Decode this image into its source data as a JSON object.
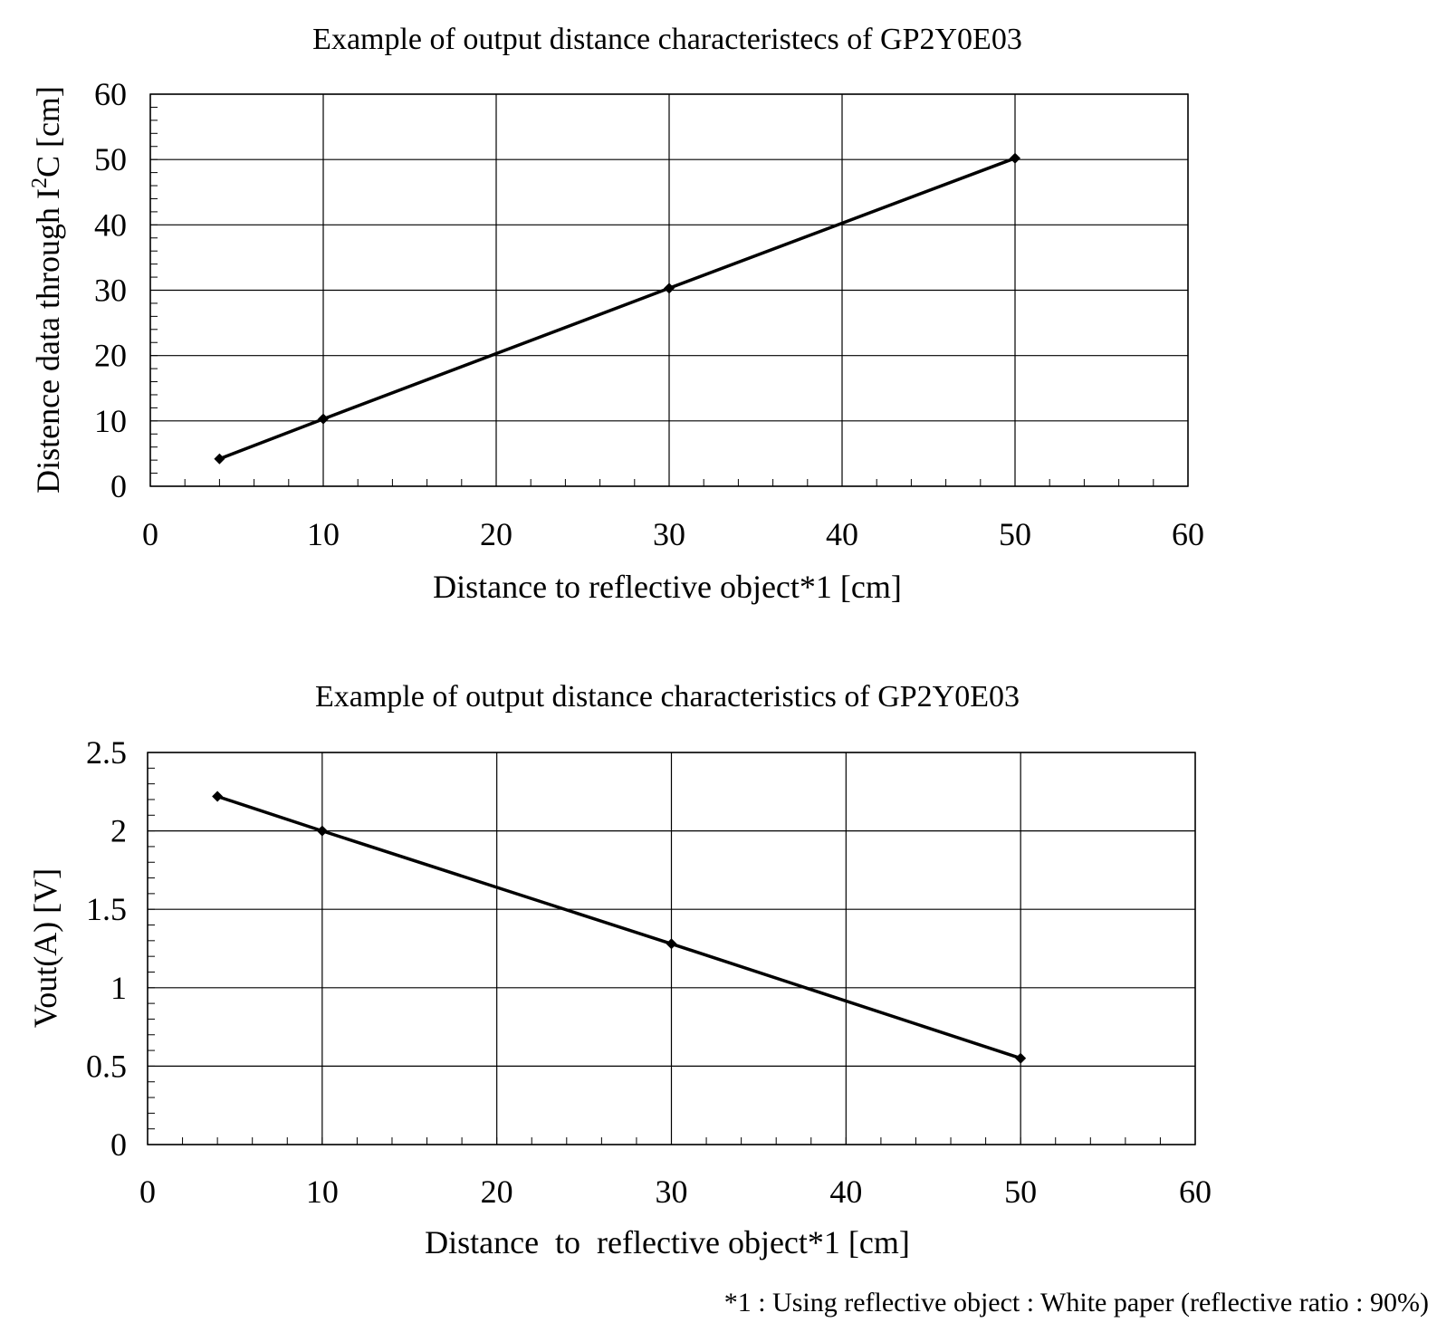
{
  "chart_data": [
    {
      "type": "line",
      "title": "Example of output distance characteristecs of GP2Y0E03",
      "xlabel": "Distance to reflective object*1 [cm]",
      "ylabel_main": "Distence data through I",
      "ylabel_sup": "2",
      "ylabel_rest": "C [cm]",
      "xlim": [
        0,
        60
      ],
      "ylim": [
        0,
        60
      ],
      "xticks": [
        "0",
        "10",
        "20",
        "30",
        "40",
        "50",
        "60"
      ],
      "yticks": [
        "0",
        "10",
        "20",
        "30",
        "40",
        "50",
        "60"
      ],
      "grid": true,
      "series": [
        {
          "x": [
            4,
            10,
            30,
            50
          ],
          "y": [
            4.2,
            10.3,
            30.3,
            50.2
          ]
        }
      ]
    },
    {
      "type": "line",
      "title": "Example of output distance characteristics of GP2Y0E03",
      "xlabel": "Distance  to  reflective object*1 [cm]",
      "ylabel_main": "Vout(A) [V]",
      "ylabel_sup": "",
      "ylabel_rest": "",
      "xlim": [
        0,
        60
      ],
      "ylim": [
        0,
        2.5
      ],
      "xticks": [
        "0",
        "10",
        "20",
        "30",
        "40",
        "50",
        "60"
      ],
      "yticks": [
        "0",
        "0.5",
        "1",
        "1.5",
        "2",
        "2.5"
      ],
      "grid": true,
      "series": [
        {
          "x": [
            4,
            10,
            30,
            50
          ],
          "y": [
            2.22,
            2.0,
            1.28,
            0.55
          ]
        }
      ]
    }
  ],
  "footnote": "*1 : Using reflective object : White paper (reflective ratio : 90%)",
  "colors": {
    "line": "#000000",
    "grid": "#000000",
    "background": "#ffffff"
  }
}
